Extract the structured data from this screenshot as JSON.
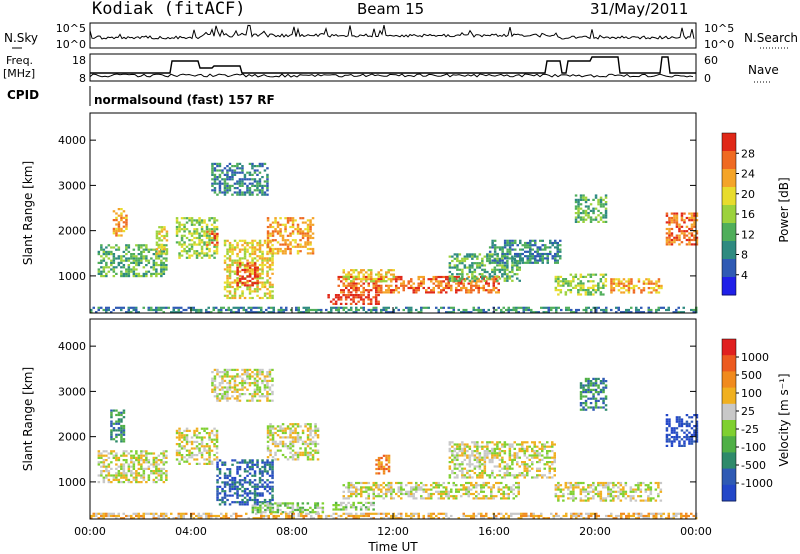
{
  "header": {
    "station": "Kodiak (fitACF)",
    "beam": "Beam 15",
    "date": "31/May/2011"
  },
  "summary_panels": {
    "nsky_label": "N.Sky",
    "nsearch_label": "N.Search",
    "freq_label_line1": "Freq.",
    "freq_label_line2": "[MHz]",
    "nave_label": "Nave",
    "cpid_label": "CPID",
    "cpid_text": "normalsound (fast) 157 RF",
    "left_ticks_top": [
      "10^5",
      "10^0"
    ],
    "right_ticks_top": [
      "10^5",
      "10^0"
    ],
    "left_ticks_freq": [
      "18",
      "8"
    ],
    "right_ticks_nave": [
      "60",
      "0"
    ]
  },
  "chart_data": [
    {
      "type": "heatmap",
      "title": "",
      "xlabel": "",
      "ylabel": "Slant Range [km]",
      "x_tick_labels": [
        "00:00",
        "04:00",
        "08:00",
        "12:00",
        "16:00",
        "20:00",
        "00:00"
      ],
      "x_range_hours": [
        0,
        24
      ],
      "y_ticks": [
        1000,
        2000,
        3000,
        4000
      ],
      "ylim": [
        180,
        4600
      ],
      "colorbar": {
        "label": "Power [dB]",
        "ticks": [
          "4",
          "8",
          "12",
          "16",
          "20",
          "24",
          "28"
        ],
        "colors": [
          "#1f1fe8",
          "#2f5ab4",
          "#2e8a80",
          "#4fae5a",
          "#9cd23c",
          "#e8dc2c",
          "#f4a428",
          "#ef6a22",
          "#e02818"
        ]
      },
      "regions": [
        {
          "t0": 0.9,
          "t1": 1.4,
          "r0": 1900,
          "r1": 2500,
          "level": 6
        },
        {
          "t0": 0.3,
          "t1": 3.0,
          "r0": 1000,
          "r1": 1700,
          "level": 3
        },
        {
          "t0": 2.6,
          "t1": 3.0,
          "r0": 1500,
          "r1": 2100,
          "level": 5
        },
        {
          "t0": 3.4,
          "t1": 5.0,
          "r0": 1400,
          "r1": 2300,
          "level": 4
        },
        {
          "t0": 4.6,
          "t1": 5.0,
          "r0": 1700,
          "r1": 2000,
          "level": 7
        },
        {
          "t0": 5.3,
          "t1": 7.2,
          "r0": 500,
          "r1": 1800,
          "level": 5
        },
        {
          "t0": 5.8,
          "t1": 6.6,
          "r0": 800,
          "r1": 1300,
          "level": 8
        },
        {
          "t0": 7.0,
          "t1": 8.8,
          "r0": 1500,
          "r1": 2300,
          "level": 6
        },
        {
          "t0": 4.8,
          "t1": 7.0,
          "r0": 2800,
          "r1": 3500,
          "level": 2
        },
        {
          "t0": 9.4,
          "t1": 11.4,
          "r0": 400,
          "r1": 600,
          "level": 8
        },
        {
          "t0": 9.8,
          "t1": 16.2,
          "r0": 650,
          "r1": 1000,
          "level": 7
        },
        {
          "t0": 10.0,
          "t1": 12.0,
          "r0": 900,
          "r1": 1150,
          "level": 5
        },
        {
          "t0": 14.2,
          "t1": 17.0,
          "r0": 900,
          "r1": 1500,
          "level": 3
        },
        {
          "t0": 15.8,
          "t1": 18.6,
          "r0": 1300,
          "r1": 1800,
          "level": 2
        },
        {
          "t0": 18.4,
          "t1": 20.4,
          "r0": 600,
          "r1": 1050,
          "level": 4
        },
        {
          "t0": 20.6,
          "t1": 22.6,
          "r0": 650,
          "r1": 950,
          "level": 6
        },
        {
          "t0": 19.2,
          "t1": 20.4,
          "r0": 2200,
          "r1": 2800,
          "level": 3
        },
        {
          "t0": 22.8,
          "t1": 24.0,
          "r0": 1700,
          "r1": 2400,
          "level": 7
        },
        {
          "t0": 0.0,
          "t1": 24.0,
          "r0": 180,
          "r1": 320,
          "level": 2
        }
      ]
    },
    {
      "type": "heatmap",
      "title": "",
      "xlabel": "Time UT",
      "ylabel": "Slant Range [km]",
      "x_tick_labels": [
        "00:00",
        "04:00",
        "08:00",
        "12:00",
        "16:00",
        "20:00",
        "00:00"
      ],
      "x_range_hours": [
        0,
        24
      ],
      "y_ticks": [
        1000,
        2000,
        3000,
        4000
      ],
      "ylim": [
        180,
        4600
      ],
      "colorbar": {
        "label": "Velocity [m s⁻¹]",
        "ticks": [
          "1000",
          "500",
          "100",
          "25",
          "-25",
          "-100",
          "-500",
          "-1000"
        ],
        "colors": [
          "#2347c8",
          "#2f5ab4",
          "#2e8a6a",
          "#4faf46",
          "#7fd030",
          "#c8c8c8",
          "#f0b020",
          "#f08a1e",
          "#ec5a20",
          "#e02020"
        ]
      },
      "regions": [
        {
          "t0": 0.8,
          "t1": 1.3,
          "r0": 1900,
          "r1": 2600,
          "level": 2
        },
        {
          "t0": 0.3,
          "t1": 3.0,
          "r0": 1000,
          "r1": 1700,
          "level": 5
        },
        {
          "t0": 3.4,
          "t1": 5.0,
          "r0": 1400,
          "r1": 2200,
          "level": 5
        },
        {
          "t0": 5.0,
          "t1": 7.2,
          "r0": 500,
          "r1": 1500,
          "level": 1
        },
        {
          "t0": 6.4,
          "t1": 9.2,
          "r0": 350,
          "r1": 550,
          "level": 4
        },
        {
          "t0": 7.0,
          "t1": 9.0,
          "r0": 1500,
          "r1": 2300,
          "level": 5
        },
        {
          "t0": 9.6,
          "t1": 11.2,
          "r0": 380,
          "r1": 560,
          "level": 4
        },
        {
          "t0": 10.0,
          "t1": 17.0,
          "r0": 650,
          "r1": 1000,
          "level": 5
        },
        {
          "t0": 11.3,
          "t1": 11.8,
          "r0": 1200,
          "r1": 1600,
          "level": 7
        },
        {
          "t0": 14.2,
          "t1": 18.4,
          "r0": 1100,
          "r1": 1900,
          "level": 5
        },
        {
          "t0": 18.4,
          "t1": 22.6,
          "r0": 600,
          "r1": 1000,
          "level": 5
        },
        {
          "t0": 19.4,
          "t1": 20.4,
          "r0": 2600,
          "r1": 3300,
          "level": 2
        },
        {
          "t0": 22.8,
          "t1": 24.0,
          "r0": 1800,
          "r1": 2500,
          "level": 0
        },
        {
          "t0": 0.0,
          "t1": 24.0,
          "r0": 180,
          "r1": 320,
          "level": 6
        },
        {
          "t0": 4.8,
          "t1": 7.2,
          "r0": 2800,
          "r1": 3500,
          "level": 5
        }
      ]
    }
  ]
}
